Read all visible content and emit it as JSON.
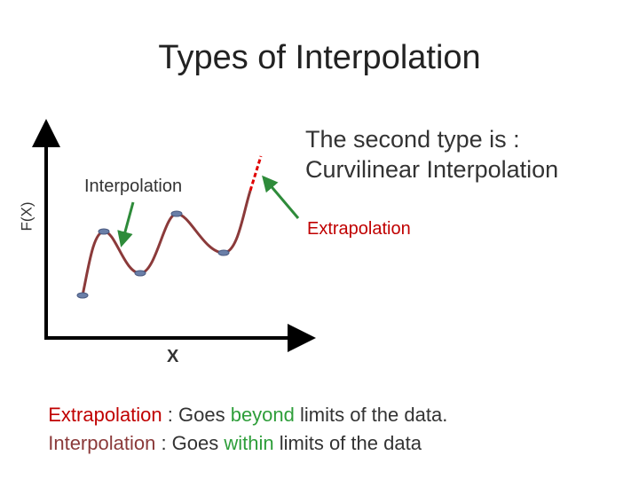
{
  "title": "Types of Interpolation",
  "axes": {
    "y_label": "F(X)",
    "x_label": "X"
  },
  "annotations": {
    "interpolation": "Interpolation",
    "extrapolation": "Extrapolation",
    "heading": [
      "The second type is :",
      "Curvilinear Interpolation"
    ]
  },
  "definitions": [
    {
      "term": "Extrapolation",
      "sep": " : Goes ",
      "keyword": "beyond",
      "rest": " limits of the data."
    },
    {
      "term": "Interpolation",
      "sep": " : Goes ",
      "keyword": "within",
      "rest": " limits of the data"
    }
  ]
}
